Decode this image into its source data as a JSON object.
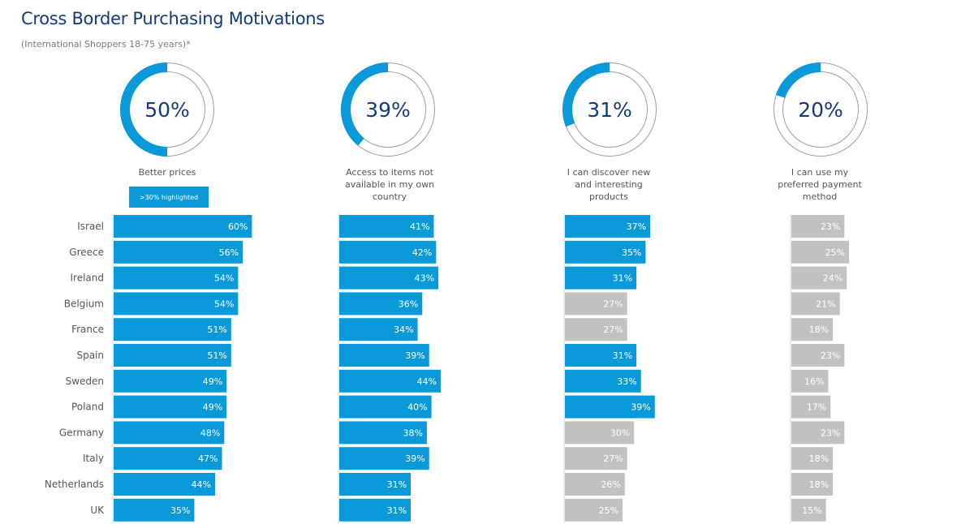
{
  "title": "Cross Border Purchasing Motivations",
  "subtitle": "(International Shoppers 18-75 years)*",
  "legend_label": ">30% highlighted",
  "colors": {
    "title": "#143a7b",
    "highlight": "#0b9ad9",
    "base": "#c2c2c2",
    "donut_track": "#9e9e9e",
    "donut_text": "#143a7b",
    "label_text": "#555555"
  },
  "chart_data": {
    "type": "bar",
    "orientation": "horizontal",
    "highlight_threshold": 30,
    "unit": "%",
    "categories": [
      "Israel",
      "Greece",
      "Ireland",
      "Belgium",
      "France",
      "Spain",
      "Sweden",
      "Poland",
      "Germany",
      "Italy",
      "Netherlands",
      "UK"
    ],
    "series": [
      {
        "name": "Better prices",
        "overall": 50,
        "values": [
          60,
          56,
          54,
          54,
          51,
          51,
          49,
          49,
          48,
          47,
          44,
          35
        ]
      },
      {
        "name": "Access to items not available in my own country",
        "overall": 39,
        "values": [
          41,
          42,
          43,
          36,
          34,
          39,
          44,
          40,
          38,
          39,
          31,
          31
        ]
      },
      {
        "name": "I can discover new and interesting products",
        "overall": 31,
        "values": [
          37,
          35,
          31,
          27,
          27,
          31,
          33,
          39,
          30,
          27,
          26,
          25
        ]
      },
      {
        "name": "I can use my preferred payment method",
        "overall": 20,
        "values": [
          23,
          25,
          24,
          21,
          18,
          23,
          16,
          17,
          23,
          18,
          18,
          15
        ]
      }
    ]
  }
}
